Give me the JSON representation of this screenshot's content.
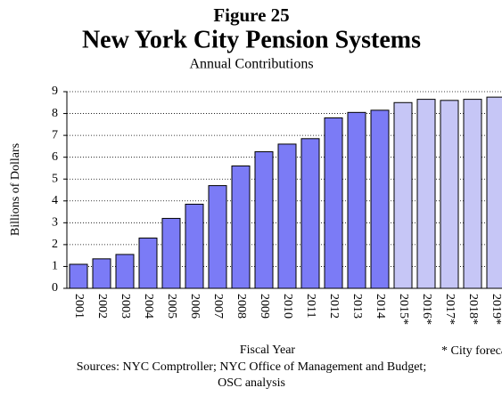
{
  "chart_data": {
    "type": "bar",
    "figure_label": "Figure 25",
    "title": "New York City Pension Systems",
    "subtitle": "Annual Contributions",
    "y_label": "Billions of Dollars",
    "x_label": "Fiscal Year",
    "annotation": "* City forecast",
    "sources": [
      "Sources: NYC Comptroller; NYC Office of Management and Budget;",
      "OSC analysis"
    ],
    "categories": [
      "2001",
      "2002",
      "2003",
      "2004",
      "2005",
      "2006",
      "2007",
      "2008",
      "2009",
      "2010",
      "2011",
      "2012",
      "2013",
      "2014",
      "2015*",
      "2016*",
      "2017*",
      "2018*",
      "2019*"
    ],
    "values": [
      1.1,
      1.35,
      1.55,
      2.3,
      3.2,
      3.85,
      4.7,
      5.6,
      6.25,
      6.6,
      6.85,
      7.8,
      8.05,
      8.15,
      8.5,
      8.65,
      8.6,
      8.65,
      8.75
    ],
    "bar_colors": [
      "#7b7bf6",
      "#7b7bf6",
      "#7b7bf6",
      "#7b7bf6",
      "#7b7bf6",
      "#7b7bf6",
      "#7b7bf6",
      "#7b7bf6",
      "#7b7bf6",
      "#7b7bf6",
      "#7b7bf6",
      "#7b7bf6",
      "#7b7bf6",
      "#7b7bf6",
      "#c6c6f6",
      "#c6c6f6",
      "#c6c6f6",
      "#c6c6f6",
      "#c6c6f6"
    ],
    "ylim": [
      0,
      9
    ],
    "yticks": [
      0,
      1,
      2,
      3,
      4,
      5,
      6,
      7,
      8,
      9
    ],
    "grid": true
  }
}
